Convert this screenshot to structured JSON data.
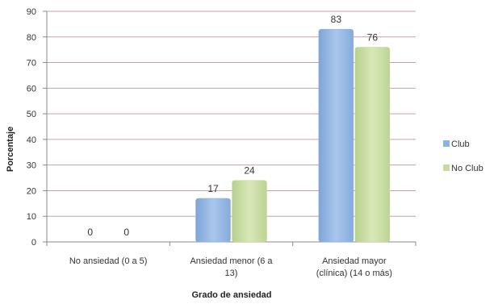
{
  "chart_data": {
    "type": "bar",
    "title": "",
    "xlabel": "Grado de ansiedad",
    "ylabel": "Porcentaje",
    "ylim": [
      0,
      90
    ],
    "yticks": [
      0,
      10,
      20,
      30,
      40,
      50,
      60,
      70,
      80,
      90
    ],
    "grid": true,
    "legend_position": "right",
    "categories": [
      [
        "No ansiedad (0 a 5)"
      ],
      [
        "Ansiedad menor (6 a",
        "13)"
      ],
      [
        "Ansiedad mayor",
        "(clínica) (14 o más)"
      ]
    ],
    "series": [
      {
        "name": "Club",
        "values": [
          0,
          17,
          83
        ],
        "color": "#8eb2e0"
      },
      {
        "name": "No Club",
        "values": [
          0,
          24,
          76
        ],
        "color": "#c6dba0"
      }
    ],
    "grid_color": "#c9a0a0",
    "axis_color": "#8a8a8a"
  }
}
